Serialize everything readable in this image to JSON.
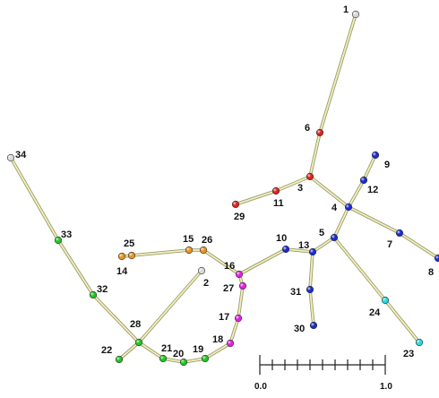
{
  "colors": {
    "white": "#d6d6d6",
    "red": "#d8241c",
    "blue": "#1a2bd0",
    "orange": "#e8911e",
    "magenta": "#e21fe0",
    "green": "#22c322",
    "cyan": "#23d6e0"
  },
  "nodes": [
    {
      "id": "1",
      "color": "white"
    },
    {
      "id": "6",
      "color": "red"
    },
    {
      "id": "3",
      "color": "red"
    },
    {
      "id": "11",
      "color": "red"
    },
    {
      "id": "29",
      "color": "red"
    },
    {
      "id": "4",
      "color": "blue"
    },
    {
      "id": "12",
      "color": "blue"
    },
    {
      "id": "9",
      "color": "blue"
    },
    {
      "id": "7",
      "color": "blue"
    },
    {
      "id": "8",
      "color": "blue"
    },
    {
      "id": "5",
      "color": "blue"
    },
    {
      "id": "13",
      "color": "blue"
    },
    {
      "id": "10",
      "color": "blue"
    },
    {
      "id": "31",
      "color": "blue"
    },
    {
      "id": "30",
      "color": "blue"
    },
    {
      "id": "24",
      "color": "cyan"
    },
    {
      "id": "23",
      "color": "cyan"
    },
    {
      "id": "16",
      "color": "magenta"
    },
    {
      "id": "27",
      "color": "magenta"
    },
    {
      "id": "17",
      "color": "magenta"
    },
    {
      "id": "18",
      "color": "magenta"
    },
    {
      "id": "26",
      "color": "orange"
    },
    {
      "id": "15",
      "color": "orange"
    },
    {
      "id": "25",
      "color": "orange"
    },
    {
      "id": "14",
      "color": "orange"
    },
    {
      "id": "2",
      "color": "white"
    },
    {
      "id": "19",
      "color": "green"
    },
    {
      "id": "20",
      "color": "green"
    },
    {
      "id": "21",
      "color": "green"
    },
    {
      "id": "28",
      "color": "green"
    },
    {
      "id": "22",
      "color": "green"
    },
    {
      "id": "32",
      "color": "green"
    },
    {
      "id": "33",
      "color": "green"
    },
    {
      "id": "34",
      "color": "white"
    }
  ],
  "edges": [
    [
      "1",
      "6"
    ],
    [
      "6",
      "3"
    ],
    [
      "3",
      "11"
    ],
    [
      "11",
      "29"
    ],
    [
      "3",
      "4"
    ],
    [
      "4",
      "12"
    ],
    [
      "12",
      "9"
    ],
    [
      "4",
      "7"
    ],
    [
      "7",
      "8"
    ],
    [
      "4",
      "5"
    ],
    [
      "5",
      "13"
    ],
    [
      "13",
      "10"
    ],
    [
      "13",
      "31"
    ],
    [
      "31",
      "30"
    ],
    [
      "5",
      "24"
    ],
    [
      "24",
      "23"
    ],
    [
      "10",
      "16"
    ],
    [
      "16",
      "26"
    ],
    [
      "26",
      "15"
    ],
    [
      "15",
      "25"
    ],
    [
      "25",
      "14"
    ],
    [
      "16",
      "27"
    ],
    [
      "27",
      "17"
    ],
    [
      "17",
      "18"
    ],
    [
      "18",
      "19"
    ],
    [
      "19",
      "20"
    ],
    [
      "20",
      "21"
    ],
    [
      "21",
      "28"
    ],
    [
      "28",
      "2"
    ],
    [
      "28",
      "22"
    ],
    [
      "28",
      "32"
    ],
    [
      "32",
      "33"
    ],
    [
      "33",
      "34"
    ]
  ],
  "scale_bar": {
    "min_label": "0.0",
    "max_label": "1.0",
    "ticks": 11
  }
}
